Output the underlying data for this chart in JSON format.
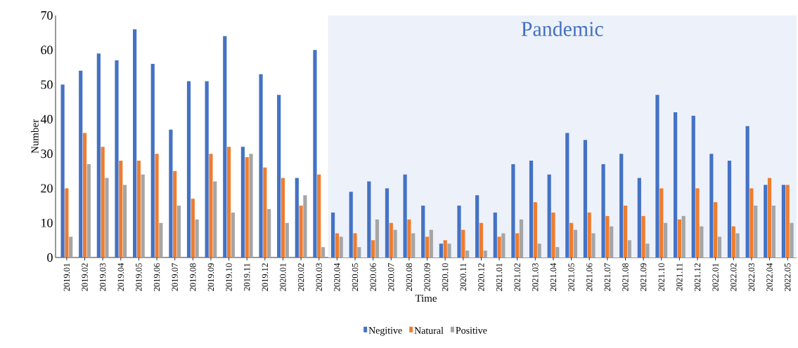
{
  "chart_data": {
    "type": "bar",
    "xlabel": "Time",
    "ylabel": "Number",
    "categories": [
      "2019.01",
      "2019.02",
      "2019.03",
      "2019.04",
      "2019.05",
      "2019.06",
      "2019.07",
      "2019.08",
      "2019.09",
      "2019.10",
      "2019.11",
      "2019.12",
      "2020.01",
      "2020.02",
      "2020.03",
      "2020.04",
      "2020.05",
      "2020.06",
      "2020.07",
      "2020.08",
      "2020.09",
      "2020.10",
      "2020.11",
      "2020.12",
      "2021.01",
      "2021.02",
      "2021.03",
      "2021.04",
      "2021.05",
      "2021.06",
      "2021.07",
      "2021.08",
      "2021.09",
      "2021.10",
      "2021.11",
      "2021.12",
      "2022.01",
      "2022.02",
      "2022.03",
      "2022.04",
      "2022.05"
    ],
    "series": [
      {
        "name": "Negitive",
        "color": "#4472c4",
        "values": [
          50,
          54,
          59,
          57,
          66,
          56,
          37,
          51,
          51,
          64,
          32,
          53,
          47,
          23,
          60,
          13,
          19,
          22,
          20,
          24,
          15,
          4,
          15,
          18,
          13,
          27,
          28,
          24,
          36,
          34,
          27,
          30,
          23,
          47,
          42,
          41,
          30,
          28,
          38,
          21,
          21
        ]
      },
      {
        "name": "Natural",
        "color": "#ed7d31",
        "values": [
          20,
          36,
          32,
          28,
          28,
          30,
          25,
          17,
          30,
          32,
          29,
          26,
          23,
          15,
          24,
          7,
          7,
          5,
          10,
          11,
          6,
          5,
          8,
          10,
          6,
          7,
          16,
          13,
          10,
          13,
          12,
          15,
          12,
          20,
          11,
          20,
          16,
          9,
          20,
          23,
          21
        ]
      },
      {
        "name": "Positive",
        "color": "#a5a5a5",
        "values": [
          6,
          27,
          23,
          21,
          24,
          10,
          15,
          11,
          22,
          13,
          30,
          14,
          10,
          18,
          3,
          6,
          3,
          11,
          8,
          7,
          8,
          4,
          2,
          2,
          7,
          11,
          4,
          3,
          8,
          7,
          9,
          5,
          4,
          10,
          12,
          9,
          6,
          7,
          15,
          15,
          10
        ]
      }
    ],
    "ylim": [
      0,
      70
    ],
    "yticks": [
      0,
      10,
      20,
      30,
      40,
      50,
      60,
      70
    ],
    "legend": "bottom",
    "bands": [
      {
        "axis": "x",
        "from": "2020.04",
        "to": "2022.05",
        "label": "Pandemic",
        "color": "#edf1fa"
      }
    ]
  }
}
